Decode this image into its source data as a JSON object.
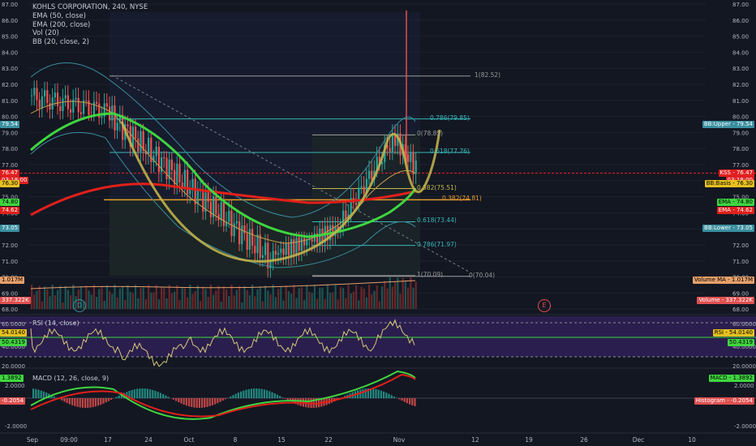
{
  "header": {
    "symbol": "KOHLS CORPORATION, 240, NYSE",
    "indicators": [
      "EMA (50, close)",
      "EMA (200, close)",
      "Vol (20)",
      "BB (20, close, 2)"
    ]
  },
  "price_axis": {
    "ticks": [
      "87.00",
      "86.00",
      "85.00",
      "84.00",
      "83.00",
      "82.00",
      "81.00",
      "80.00",
      "79.00",
      "78.00",
      "77.00",
      "76.00",
      "75.00",
      "74.00",
      "73.00",
      "72.00",
      "71.00",
      "70.00",
      "69.00",
      "68.00"
    ]
  },
  "rsi_axis": {
    "ticks": [
      "60.0000",
      "40.0000",
      "20.0000"
    ]
  },
  "macd_axis": {
    "ticks": [
      "2.0000",
      "-2.0000"
    ]
  },
  "time_axis": {
    "labels": [
      "Sep",
      "09:00",
      "17",
      "24",
      "Oct",
      "8",
      "15",
      "22",
      "Nov",
      "12",
      "19",
      "26",
      "Dec",
      "10"
    ]
  },
  "fib_levels": [
    {
      "ratio": "1",
      "label": "1(82.52)",
      "price": 82.52
    },
    {
      "ratio": "0.786",
      "label": "0.786(79.85)",
      "price": 79.85
    },
    {
      "ratio": "0.618",
      "label": "0.618(77.76)",
      "price": 77.76
    },
    {
      "ratio": "0.382",
      "label": "0.382(74.81)",
      "price": 74.81
    }
  ],
  "fib_levels_2": [
    {
      "label": "0(78.85)",
      "price": 78.85
    },
    {
      "label": "0.382(75.51)",
      "price": 75.51
    },
    {
      "label": "0.618(73.44)",
      "price": 73.44
    },
    {
      "label": "0.786(71.97)",
      "price": 71.97
    },
    {
      "label": "1(70.09)",
      "price": 70.09
    }
  ],
  "fib_extra_label": "0(70.04)",
  "left_tags": {
    "bb_upper": "79.54",
    "kss": "76.47",
    "countdown": "03:18:00",
    "bb_basis": "76.30",
    "ema50": "74.80",
    "ema200": "74.62",
    "bb_lower": "73.05",
    "vol_ma": "1.017M",
    "volume": "337.322K",
    "rsi": "54.0140",
    "rsi2": "50.4319",
    "macd": "1.3892",
    "hist": "-0.2054"
  },
  "right_tags": {
    "bb_upper": "BB:Upper - 79.54",
    "kss": "KSS - 76.47",
    "countdown": "03:18:00",
    "bb_basis": "BB:Basis - 76.30",
    "ema50": "EMA - 74.80",
    "ema200": "EMA - 74.62",
    "bb_lower": "BB:Lower - 73.05",
    "vol_ma": "Volume MA - 1.017M",
    "volume": "Volume - 337.322K",
    "rsi": "RSI - 54.0140",
    "rsi2": "50.4319",
    "macd": "MACD - 1.3892",
    "hist": "Histogram - -0.2054"
  },
  "rsi_title": "RSI (14, close)",
  "macd_title": "MACD (12, 26, close, 9)",
  "event_markers": {
    "dividend": "D",
    "earnings": "E"
  },
  "colors": {
    "background": "#131722",
    "up": "#26a69a",
    "down": "#ef5350",
    "ema50": "#3fd63f",
    "ema200": "#e0201a",
    "fib_teal": "#35b8b8",
    "fib_gray": "#9a9a9a",
    "fib_orange": "#e69a2e",
    "cup": "#c8b94c",
    "rsi_band": "#2a1e4e",
    "kss_line": "#e02020"
  }
}
